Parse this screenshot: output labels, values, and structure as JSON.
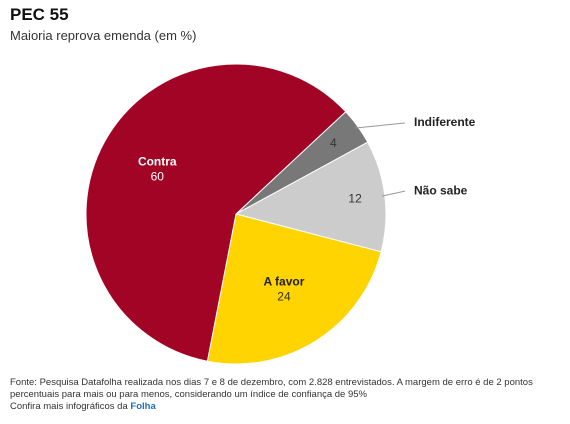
{
  "chart_data": {
    "type": "pie",
    "title": "PEC 55",
    "subtitle": "Maioria reprova emenda (em %)",
    "categories": [
      "Indiferente",
      "Não sabe",
      "A favor",
      "Contra"
    ],
    "values": [
      4,
      12,
      24,
      60
    ],
    "colors": [
      "#787878",
      "#cccccc",
      "#ffd400",
      "#a10424"
    ],
    "source": "Fonte: Pesquisa Datafolha realizada nos dias 7 e 8 de dezembro, com 2.828 entrevistados. A margem de erro é de 2 pontos percentuais para mais ou para menos, considerando um índice de confiança de 95%",
    "more_text": "Confira mais infográficos da",
    "more_link": "Folha"
  }
}
